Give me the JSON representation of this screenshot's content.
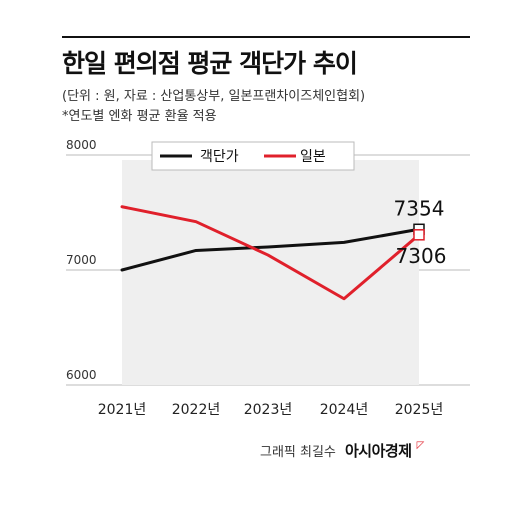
{
  "header": {
    "title": "한일 편의점 평균 객단가 추이",
    "unit_note": "(단위 : 원, 자료 : 산업통상부, 일본프랜차이즈체인협회)",
    "rate_note": "*연도별 엔화 평균 환율 적용"
  },
  "footer": {
    "credit": "그래픽 최길수",
    "brand": "아시아경제",
    "mark": "◸"
  },
  "chart_data": {
    "type": "line",
    "categories": [
      "2021년",
      "2022년",
      "2023년",
      "2024년",
      "2025년"
    ],
    "series": [
      {
        "name": "객단가",
        "color": "#111111",
        "values": [
          7000,
          7170,
          7200,
          7240,
          7354
        ]
      },
      {
        "name": "일본",
        "color": "#e0202b",
        "values": [
          7550,
          7420,
          7130,
          6750,
          7306
        ]
      }
    ],
    "ylim": [
      6000,
      8000
    ],
    "yticks": [
      6000,
      7000,
      8000
    ],
    "ytick_labels": [
      "6000",
      "7000",
      "8000"
    ],
    "end_labels": [
      "7354",
      "7306"
    ],
    "shaded_area": true,
    "legend_position": "top-center"
  }
}
